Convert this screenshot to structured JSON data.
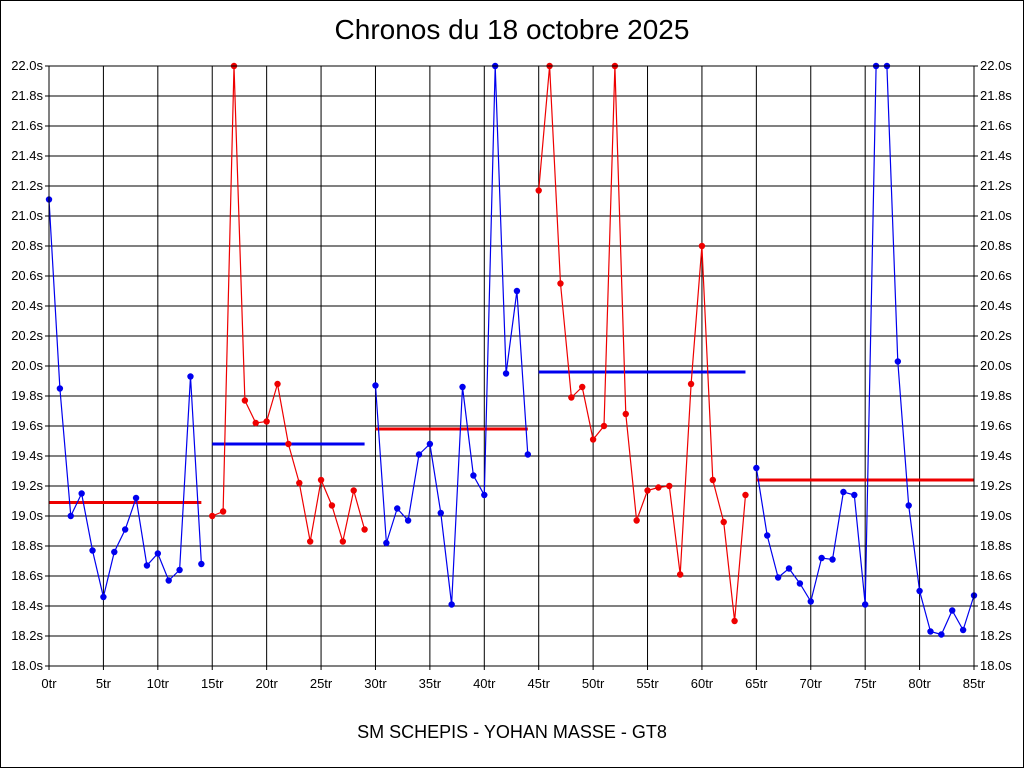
{
  "chart_data": {
    "type": "line",
    "title": "Chronos du 18 octobre 2025",
    "subtitle": "SM SCHEPIS - YOHAN MASSE - GT8",
    "xlabel": "",
    "ylabel": "",
    "xlim": [
      0,
      85
    ],
    "ylim": [
      18.0,
      22.0
    ],
    "x_ticks": [
      0,
      5,
      10,
      15,
      20,
      25,
      30,
      35,
      40,
      45,
      50,
      55,
      60,
      65,
      70,
      75,
      80,
      85
    ],
    "x_tick_suffix": "tr",
    "y_ticks": [
      18.0,
      18.2,
      18.4,
      18.6,
      18.8,
      19.0,
      19.2,
      19.4,
      19.6,
      19.8,
      20.0,
      20.2,
      20.4,
      20.6,
      20.8,
      21.0,
      21.2,
      21.4,
      21.6,
      21.8,
      22.0
    ],
    "y_tick_suffix": "s",
    "y_tick_decimals": 1,
    "grid": true,
    "series": [
      {
        "color": "#0000ee",
        "x": [
          0,
          1,
          2,
          3,
          4,
          5,
          6,
          7,
          8,
          9,
          10,
          11,
          12,
          13,
          14
        ],
        "values": [
          21.11,
          19.85,
          19.0,
          19.15,
          18.77,
          18.46,
          18.76,
          18.91,
          19.12,
          18.67,
          18.75,
          18.57,
          18.64,
          19.93,
          18.68
        ],
        "avg": 19.09,
        "avg_range": [
          0,
          14
        ],
        "avg_color": "#ee0000"
      },
      {
        "color": "#ee0000",
        "x": [
          15,
          16,
          17,
          18,
          19,
          20,
          21,
          22,
          23,
          24,
          25,
          26,
          27,
          28,
          29
        ],
        "values": [
          19.0,
          19.03,
          22.0,
          19.77,
          19.62,
          19.63,
          19.88,
          19.48,
          19.22,
          18.83,
          19.24,
          19.07,
          18.83,
          19.17,
          18.91
        ],
        "avg": 19.48,
        "avg_range": [
          15,
          29
        ],
        "avg_color": "#0000ee"
      },
      {
        "color": "#0000ee",
        "x": [
          30,
          31,
          32,
          33,
          34,
          35,
          36,
          37,
          38,
          39,
          40,
          41,
          42,
          43,
          44
        ],
        "values": [
          19.87,
          18.82,
          19.05,
          18.97,
          19.41,
          19.48,
          19.02,
          18.41,
          19.86,
          19.27,
          19.14,
          22.0,
          19.95,
          20.5,
          19.41
        ],
        "avg": 19.58,
        "avg_range": [
          30,
          44
        ],
        "avg_color": "#ee0000"
      },
      {
        "color": "#ee0000",
        "x": [
          45,
          46,
          47,
          48,
          49,
          50,
          51,
          52,
          53,
          54,
          55,
          56,
          57,
          58,
          59,
          60,
          61,
          62,
          63,
          64
        ],
        "values": [
          21.17,
          22.0,
          20.55,
          19.79,
          19.86,
          19.51,
          19.6,
          22.0,
          19.68,
          18.97,
          19.17,
          19.19,
          19.2,
          18.61,
          19.88,
          20.8,
          19.24,
          18.96,
          18.3,
          19.14
        ],
        "avg": 19.96,
        "avg_range": [
          45,
          64
        ],
        "avg_color": "#0000ee"
      },
      {
        "color": "#0000ee",
        "x": [
          65,
          66,
          67,
          68,
          69,
          70,
          71,
          72,
          73,
          74,
          75,
          76,
          77,
          78,
          79,
          80,
          81,
          82,
          83,
          84,
          85
        ],
        "values": [
          19.32,
          18.87,
          18.59,
          18.65,
          18.55,
          18.43,
          18.72,
          18.71,
          19.16,
          19.14,
          18.41,
          22.0,
          22.0,
          20.03,
          19.07,
          18.5,
          18.23,
          18.21,
          18.37,
          18.24,
          18.47
        ],
        "avg": 19.24,
        "avg_range": [
          65,
          85
        ],
        "avg_color": "#ee0000"
      }
    ]
  }
}
